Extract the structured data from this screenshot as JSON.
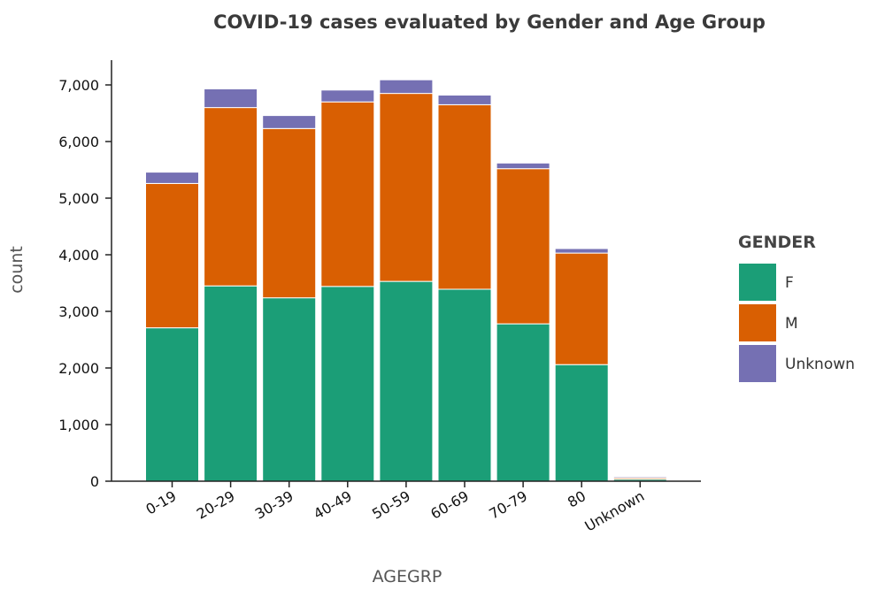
{
  "chart_data": {
    "type": "bar",
    "stacked": true,
    "title": "COVID-19 cases evaluated by Gender and Age Group",
    "xlabel": "AGEGRP",
    "ylabel": "count",
    "ylim": [
      0,
      7400
    ],
    "yticks": [
      0,
      1000,
      2000,
      3000,
      4000,
      5000,
      6000,
      7000
    ],
    "ytick_labels": [
      "0",
      "1,000",
      "2,000",
      "3,000",
      "4,000",
      "5,000",
      "6,000",
      "7,000"
    ],
    "categories": [
      "0-19",
      "20-29",
      "30-39",
      "40-49",
      "50-59",
      "60-69",
      "70-79",
      "80",
      "Unknown"
    ],
    "legend_title": "GENDER",
    "legend_position": "right",
    "series": [
      {
        "name": "F",
        "color": "#1b9e77",
        "values": [
          2710,
          3450,
          3240,
          3440,
          3530,
          3390,
          2780,
          2060,
          35
        ]
      },
      {
        "name": "M",
        "color": "#d95f02",
        "values": [
          2550,
          3150,
          2990,
          3260,
          3320,
          3260,
          2740,
          1970,
          25
        ]
      },
      {
        "name": "Unknown",
        "color": "#7570b3",
        "values": [
          200,
          330,
          230,
          210,
          240,
          170,
          100,
          80,
          20
        ]
      }
    ]
  }
}
